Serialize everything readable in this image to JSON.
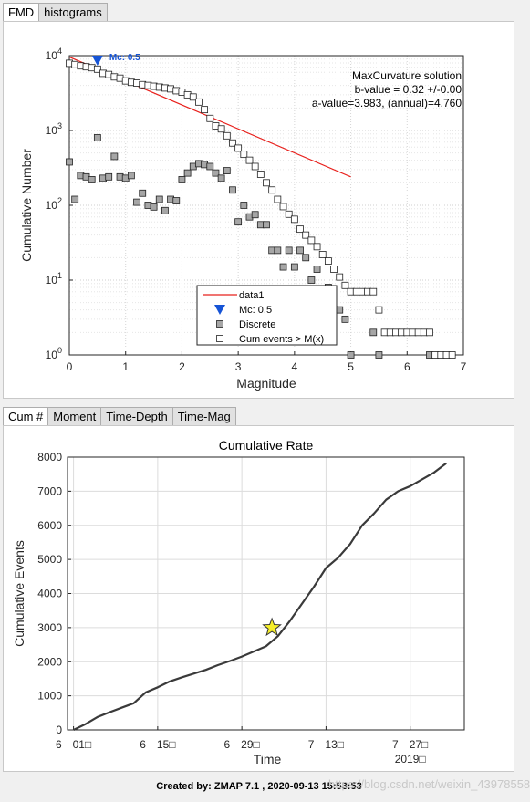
{
  "top_tabs": [
    "FMD",
    "histograms"
  ],
  "bottom_tabs": [
    "Cum #",
    "Moment",
    "Time-Depth",
    "Time-Mag"
  ],
  "colors": {
    "fit_line": "#e8201c",
    "mc_marker": "#1654d6",
    "star_fill": "#f5ee2a",
    "cum_curve": "#3a3a3a"
  },
  "fmd": {
    "annotation": [
      "MaxCurvature solution",
      "b-value = 0.32 +/-0.00",
      "a-value=3.983, (annual)=4.760"
    ],
    "mc_label": "Mc: 0.5",
    "legend": [
      "data1",
      "Mc: 0.5",
      "Discrete",
      "Cum events > M(x)"
    ],
    "xlabel": "Magnitude",
    "ylabel": "Cumulative Number",
    "xticks": [
      "0",
      "1",
      "2",
      "3",
      "4",
      "5",
      "6",
      "7"
    ],
    "yticks_base": [
      "10",
      "10",
      "10",
      "10",
      "10"
    ],
    "yticks_exp": [
      "0",
      "1",
      "2",
      "3",
      "4"
    ]
  },
  "cum": {
    "title": "Cumulative Rate",
    "xlabel": "Time",
    "ylabel": "Cumulative Events",
    "xticks": [
      "6 01",
      "6 15",
      "6 29",
      "7 13",
      "7 27"
    ],
    "xtick_suffix": "□",
    "year": "2019",
    "yticks": [
      "0",
      "1000",
      "2000",
      "3000",
      "4000",
      "5000",
      "6000",
      "7000",
      "8000"
    ]
  },
  "footer": "Created by: ZMAP 7.1 , 2020-09-13 15:53:53",
  "watermark": "https://blog.csdn.net/weixin_43978558",
  "chart_data": [
    {
      "type": "scatter",
      "xlabel": "Magnitude",
      "ylabel": "Cumulative Number",
      "xlim": [
        0,
        7
      ],
      "ylim": [
        1,
        10000
      ],
      "yscale": "log",
      "grid": true,
      "legend_position": "bottom-center",
      "series": [
        {
          "name": "Cum events > M(x)",
          "x": [
            0,
            0.1,
            0.2,
            0.3,
            0.4,
            0.5,
            0.6,
            0.7,
            0.8,
            0.9,
            1.0,
            1.1,
            1.2,
            1.3,
            1.4,
            1.5,
            1.6,
            1.7,
            1.8,
            1.9,
            2.0,
            2.1,
            2.2,
            2.3,
            2.4,
            2.5,
            2.6,
            2.7,
            2.8,
            2.9,
            3.0,
            3.1,
            3.2,
            3.3,
            3.4,
            3.5,
            3.6,
            3.7,
            3.8,
            3.9,
            4.0,
            4.1,
            4.2,
            4.3,
            4.4,
            4.5,
            4.6,
            4.7,
            4.8,
            4.9,
            5.0,
            5.1,
            5.2,
            5.3,
            5.4,
            5.5,
            5.6,
            5.7,
            5.8,
            5.9,
            6.0,
            6.1,
            6.2,
            6.3,
            6.4,
            6.5,
            6.6,
            6.7,
            6.8
          ],
          "y": [
            7900,
            7600,
            7300,
            7100,
            6900,
            6600,
            5800,
            5600,
            5200,
            5000,
            4600,
            4400,
            4300,
            4100,
            4000,
            3900,
            3800,
            3700,
            3600,
            3400,
            3250,
            3000,
            2800,
            2400,
            1900,
            1450,
            1150,
            1050,
            850,
            680,
            580,
            480,
            400,
            330,
            260,
            200,
            160,
            120,
            96,
            76,
            65,
            48,
            40,
            34,
            28,
            22,
            18,
            14,
            11,
            8.5,
            7,
            7,
            7,
            7,
            7,
            4,
            2,
            2,
            2,
            2,
            2,
            2,
            2,
            2,
            2,
            1,
            1,
            1,
            1
          ]
        },
        {
          "name": "Discrete",
          "x": [
            0,
            0.1,
            0.2,
            0.3,
            0.4,
            0.5,
            0.6,
            0.7,
            0.8,
            0.9,
            1.0,
            1.1,
            1.2,
            1.3,
            1.4,
            1.5,
            1.6,
            1.7,
            1.8,
            1.9,
            2.0,
            2.1,
            2.2,
            2.3,
            2.4,
            2.5,
            2.6,
            2.7,
            2.8,
            2.9,
            3.0,
            3.1,
            3.2,
            3.3,
            3.4,
            3.5,
            3.6,
            3.7,
            3.8,
            3.9,
            4.0,
            4.1,
            4.2,
            4.3,
            4.4,
            4.5,
            4.6,
            4.7,
            4.8,
            4.9,
            5.0,
            5.4,
            5.5,
            6.4
          ],
          "y": [
            380,
            120,
            250,
            240,
            220,
            800,
            230,
            240,
            450,
            240,
            230,
            250,
            110,
            145,
            100,
            95,
            120,
            85,
            120,
            115,
            220,
            270,
            330,
            360,
            350,
            330,
            270,
            230,
            290,
            160,
            60,
            100,
            70,
            75,
            55,
            55,
            25,
            25,
            15,
            25,
            15,
            25,
            20,
            10,
            14,
            5,
            8,
            4,
            4,
            3,
            1,
            2,
            1,
            1
          ]
        },
        {
          "name": "data1",
          "x": [
            0,
            5
          ],
          "y": [
            9600,
            240
          ]
        }
      ],
      "mc": 0.5
    },
    {
      "type": "line",
      "title": "Cumulative Rate",
      "xlabel": "Time",
      "ylabel": "Cumulative Events",
      "x_type": "date",
      "x": [
        "2019-06-01",
        "2019-06-03",
        "2019-06-05",
        "2019-06-07",
        "2019-06-09",
        "2019-06-11",
        "2019-06-13",
        "2019-06-15",
        "2019-06-17",
        "2019-06-19",
        "2019-06-21",
        "2019-06-23",
        "2019-06-25",
        "2019-06-27",
        "2019-06-29",
        "2019-07-01",
        "2019-07-03",
        "2019-07-05",
        "2019-07-07",
        "2019-07-09",
        "2019-07-11",
        "2019-07-13",
        "2019-07-15",
        "2019-07-17",
        "2019-07-19",
        "2019-07-21",
        "2019-07-23",
        "2019-07-25",
        "2019-07-27",
        "2019-07-29",
        "2019-07-31",
        "2019-08-02"
      ],
      "y": [
        0,
        170,
        380,
        520,
        650,
        780,
        1100,
        1250,
        1420,
        1540,
        1650,
        1760,
        1900,
        2020,
        2150,
        2300,
        2450,
        2750,
        3200,
        3700,
        4200,
        4750,
        5050,
        5450,
        6000,
        6350,
        6750,
        7000,
        7150,
        7350,
        7550,
        7820
      ],
      "ylim": [
        0,
        8000
      ],
      "grid": true,
      "marker": {
        "type": "star",
        "x": "2019-07-04",
        "y": 3000
      }
    }
  ]
}
